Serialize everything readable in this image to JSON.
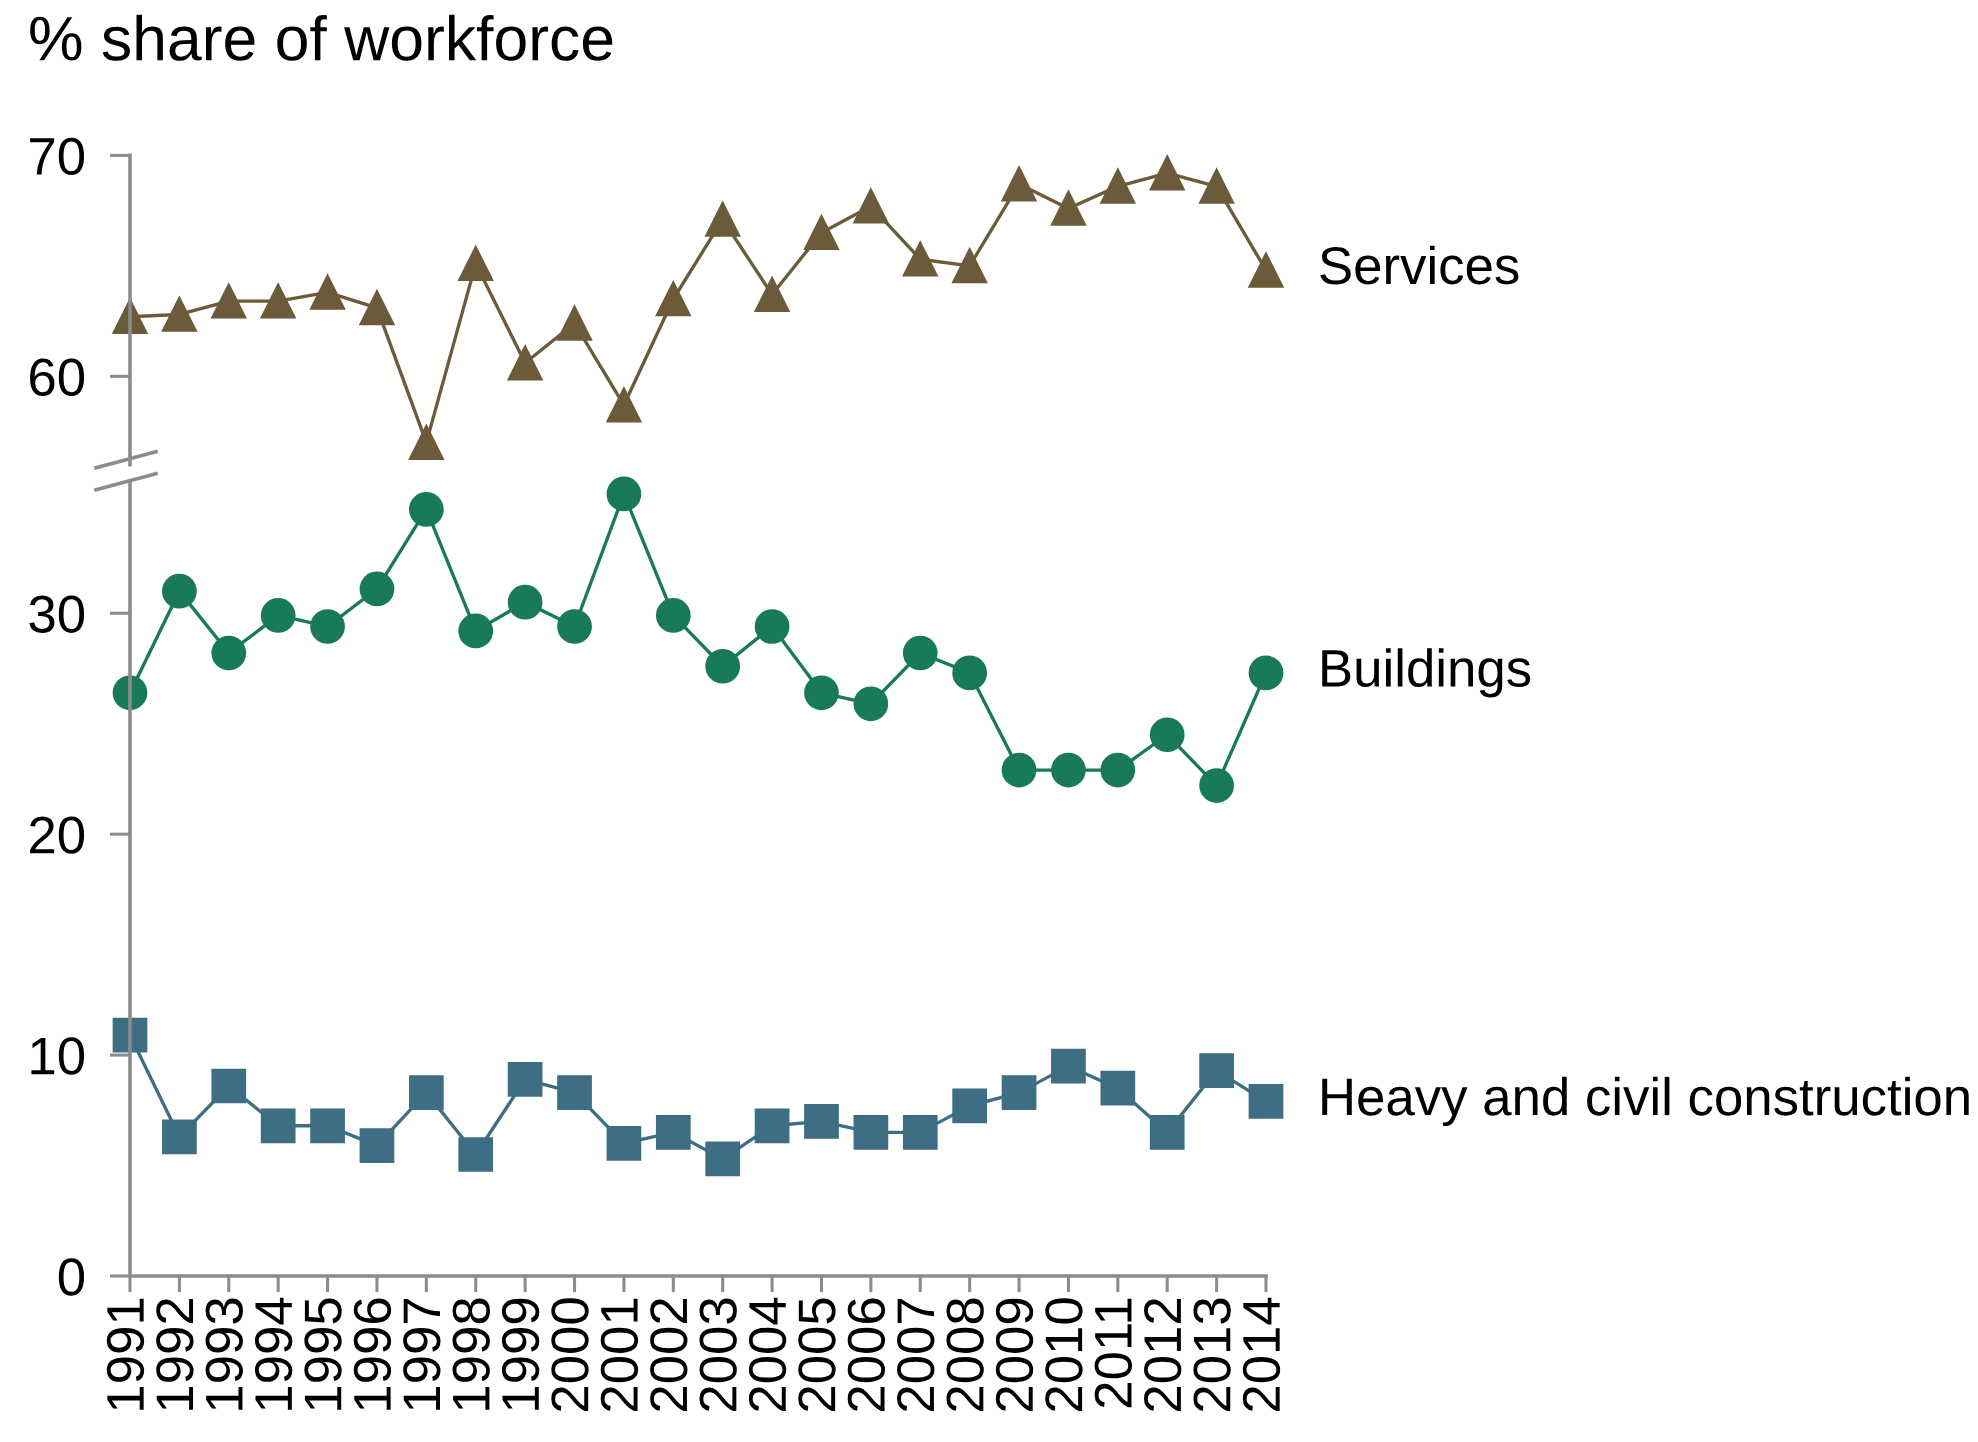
{
  "chart_data": [
    {
      "type": "line",
      "ylabel": "% share of workforce",
      "categories": [
        "1991",
        "1992",
        "1993",
        "1994",
        "1995",
        "1996",
        "1997",
        "1998",
        "1999",
        "2000",
        "2001",
        "2002",
        "2003",
        "2004",
        "2005",
        "2006",
        "2007",
        "2008",
        "2009",
        "2010",
        "2011",
        "2012",
        "2013",
        "2014"
      ],
      "tick_labels": "y",
      "ylim": [
        56,
        70
      ],
      "yticks": [
        60,
        70
      ],
      "series": [
        {
          "name": "Services",
          "color": "#6b5b3a",
          "marker": "triangle",
          "values": [
            62.7,
            62.8,
            63.4,
            63.4,
            63.8,
            63.1,
            57.0,
            65.1,
            60.6,
            62.4,
            58.7,
            63.5,
            67.1,
            63.7,
            66.5,
            67.7,
            65.3,
            65.0,
            68.7,
            67.6,
            68.6,
            69.2,
            68.6,
            64.8
          ]
        }
      ]
    },
    {
      "type": "line",
      "categories": [
        "1991",
        "1992",
        "1993",
        "1994",
        "1995",
        "1996",
        "1997",
        "1998",
        "1999",
        "2000",
        "2001",
        "2002",
        "2003",
        "2004",
        "2005",
        "2006",
        "2007",
        "2008",
        "2009",
        "2010",
        "2011",
        "2012",
        "2013",
        "2014"
      ],
      "ylim": [
        0,
        36
      ],
      "yticks": [
        0,
        10,
        20,
        30
      ],
      "series": [
        {
          "name": "Buildings",
          "color": "#187a58",
          "marker": "circle",
          "values": [
            26.4,
            31.0,
            28.2,
            29.9,
            29.4,
            31.1,
            34.7,
            29.2,
            30.5,
            29.4,
            35.4,
            29.9,
            27.6,
            29.4,
            26.4,
            25.9,
            28.2,
            27.3,
            22.9,
            22.9,
            22.9,
            24.5,
            22.2,
            27.3
          ]
        },
        {
          "name": "Heavy and civil construction",
          "color": "#3e6e83",
          "marker": "square",
          "values": [
            10.9,
            6.3,
            8.6,
            6.8,
            6.8,
            5.9,
            8.3,
            5.5,
            8.9,
            8.3,
            6.0,
            6.5,
            5.3,
            6.8,
            7.0,
            6.5,
            6.5,
            7.7,
            8.3,
            9.5,
            8.5,
            6.5,
            9.3,
            7.9
          ]
        }
      ]
    }
  ]
}
